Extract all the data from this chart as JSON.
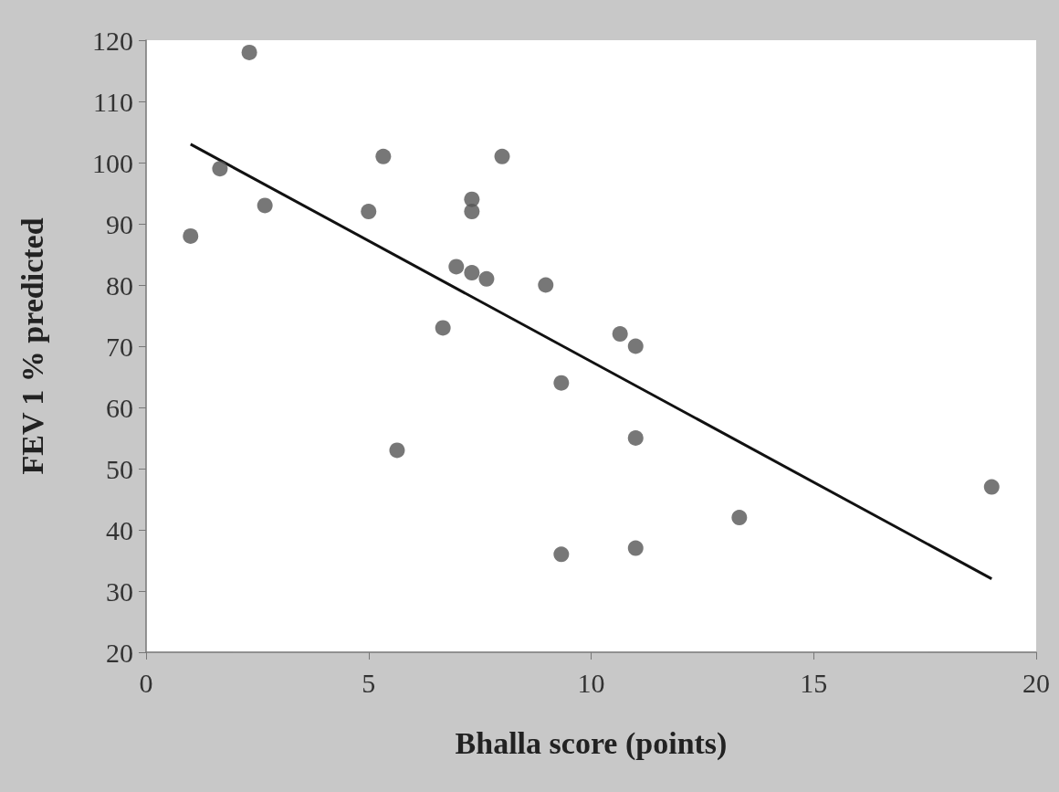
{
  "chart_data": {
    "type": "scatter",
    "xlabel": "Bhalla score (points)",
    "ylabel": "FEV 1 % predicted",
    "xlim": [
      0,
      20
    ],
    "xticks": [
      0,
      5,
      10,
      15,
      20
    ],
    "ylim": [
      20,
      120
    ],
    "yticks": [
      20,
      30,
      40,
      50,
      60,
      70,
      80,
      90,
      100,
      110,
      120
    ],
    "grid": false,
    "series": [
      {
        "marker": "circle",
        "color": "#555555",
        "x": [
          1,
          1.66,
          2.32,
          2.67,
          5.0,
          5.33,
          5.64,
          6.67,
          6.97,
          7.32,
          7.32,
          7.32,
          7.65,
          8.0,
          8.98,
          9.33,
          9.33,
          10.65,
          11.0,
          11.0,
          11.0,
          13.33,
          19.0
        ],
        "values": [
          88,
          99,
          118,
          93,
          92,
          101,
          53,
          73,
          83,
          94,
          92,
          82,
          81,
          101,
          80,
          64,
          36,
          72,
          70,
          55,
          37,
          42,
          47
        ]
      },
      {
        "type": "line",
        "marker": "none",
        "color": "#111111",
        "x": [
          1,
          19
        ],
        "values": [
          103,
          32
        ]
      }
    ]
  }
}
